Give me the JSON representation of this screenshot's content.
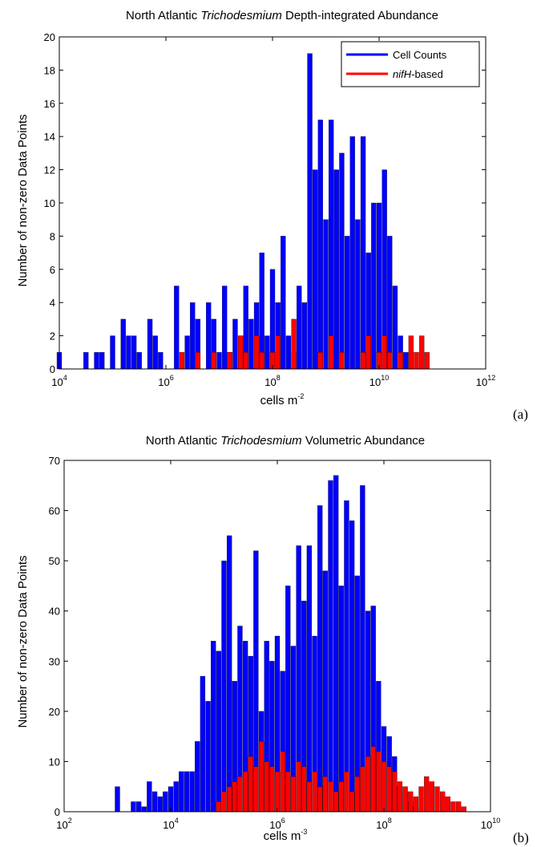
{
  "chart_data": [
    {
      "type": "bar",
      "panel_label": "(a)",
      "title_parts": [
        "North Atlantic ",
        "Trichodesmium",
        " Depth-integrated Abundance"
      ],
      "xlabel_base": "cells m",
      "xlabel_exp": "-2",
      "ylabel": "Number of non-zero Data Points",
      "xscale": "log",
      "xlim_exp": [
        4,
        12
      ],
      "ylim": [
        0,
        20
      ],
      "xticks": [
        {
          "base": "10",
          "exp": "4"
        },
        {
          "base": "10",
          "exp": "6"
        },
        {
          "base": "10",
          "exp": "8"
        },
        {
          "base": "10",
          "exp": "10"
        },
        {
          "base": "10",
          "exp": "12"
        }
      ],
      "yticks": [
        "0",
        "2",
        "4",
        "6",
        "8",
        "10",
        "12",
        "14",
        "16",
        "18",
        "20"
      ],
      "legend": {
        "position": "top-right",
        "entries": [
          {
            "label": "Cell Counts",
            "color": "#0000ff",
            "italic": ""
          },
          {
            "label": "-based",
            "color": "#ff0000",
            "italic": "nifH"
          }
        ]
      },
      "bin_width_log10": 0.1,
      "series": [
        {
          "color": "#0000ff",
          "log10_x": [
            4.0,
            4.5,
            4.7,
            4.8,
            5.0,
            5.2,
            5.3,
            5.4,
            5.5,
            5.7,
            5.8,
            5.9,
            6.2,
            6.4,
            6.5,
            6.6,
            6.8,
            6.9,
            7.0,
            7.1,
            7.2,
            7.3,
            7.4,
            7.5,
            7.6,
            7.7,
            7.8,
            7.9,
            8.0,
            8.1,
            8.2,
            8.3,
            8.4,
            8.5,
            8.6,
            8.7,
            8.8,
            8.9,
            9.0,
            9.1,
            9.2,
            9.3,
            9.4,
            9.5,
            9.6,
            9.7,
            9.8,
            9.9,
            10.0,
            10.1,
            10.2,
            10.3,
            10.4,
            10.5,
            10.6
          ],
          "values": [
            1,
            1,
            1,
            1,
            2,
            3,
            2,
            2,
            1,
            3,
            2,
            1,
            5,
            2,
            4,
            3,
            4,
            3,
            1,
            5,
            1,
            3,
            2,
            5,
            3,
            4,
            7,
            2,
            6,
            4,
            8,
            2,
            1,
            5,
            4,
            19,
            12,
            15,
            9,
            15,
            12,
            13,
            8,
            14,
            9,
            14,
            7,
            10,
            10,
            12,
            8,
            5,
            2,
            1,
            1
          ]
        },
        {
          "color": "#ff0000",
          "log10_x": [
            6.3,
            6.6,
            6.9,
            7.2,
            7.4,
            7.5,
            7.7,
            7.8,
            8.0,
            8.1,
            8.4,
            8.9,
            9.1,
            9.3,
            9.7,
            9.8,
            10.0,
            10.1,
            10.2,
            10.4,
            10.6,
            10.7,
            10.8,
            10.9
          ],
          "values": [
            1,
            1,
            1,
            1,
            2,
            1,
            2,
            1,
            1,
            2,
            3,
            1,
            2,
            1,
            1,
            2,
            1,
            2,
            1,
            1,
            2,
            1,
            2,
            1
          ]
        }
      ]
    },
    {
      "type": "bar",
      "panel_label": "(b)",
      "title_parts": [
        "North Atlantic ",
        "Trichodesmium",
        " Volumetric Abundance"
      ],
      "xlabel_base": "cells m",
      "xlabel_exp": "-3",
      "ylabel": "Number of non-zero Data Points",
      "xscale": "log",
      "xlim_exp": [
        2,
        10
      ],
      "ylim": [
        0,
        70
      ],
      "xticks": [
        {
          "base": "10",
          "exp": "2"
        },
        {
          "base": "10",
          "exp": "4"
        },
        {
          "base": "10",
          "exp": "6"
        },
        {
          "base": "10",
          "exp": "8"
        },
        {
          "base": "10",
          "exp": "10"
        }
      ],
      "yticks": [
        "0",
        "10",
        "20",
        "30",
        "40",
        "50",
        "60",
        "70"
      ],
      "legend": null,
      "bin_width_log10": 0.1,
      "series": [
        {
          "color": "#0000ff",
          "log10_x": [
            3.0,
            3.3,
            3.4,
            3.5,
            3.6,
            3.7,
            3.8,
            3.9,
            4.0,
            4.1,
            4.2,
            4.3,
            4.4,
            4.5,
            4.6,
            4.7,
            4.8,
            4.9,
            5.0,
            5.1,
            5.2,
            5.3,
            5.4,
            5.5,
            5.6,
            5.7,
            5.8,
            5.9,
            6.0,
            6.1,
            6.2,
            6.3,
            6.4,
            6.5,
            6.6,
            6.7,
            6.8,
            6.9,
            7.0,
            7.1,
            7.2,
            7.3,
            7.4,
            7.5,
            7.6,
            7.7,
            7.8,
            7.9,
            8.0,
            8.1,
            8.2,
            8.3,
            8.4,
            8.5,
            8.6
          ],
          "values": [
            5,
            2,
            2,
            1,
            6,
            4,
            3,
            4,
            5,
            6,
            8,
            8,
            8,
            14,
            27,
            22,
            34,
            32,
            50,
            55,
            26,
            37,
            34,
            31,
            52,
            20,
            34,
            30,
            35,
            28,
            45,
            33,
            53,
            42,
            53,
            35,
            61,
            48,
            66,
            67,
            45,
            62,
            58,
            47,
            65,
            40,
            41,
            26,
            17,
            15,
            11,
            5,
            4,
            2,
            1
          ]
        },
        {
          "color": "#ff0000",
          "log10_x": [
            4.9,
            5.0,
            5.1,
            5.2,
            5.3,
            5.4,
            5.5,
            5.6,
            5.7,
            5.8,
            5.9,
            6.0,
            6.1,
            6.2,
            6.3,
            6.4,
            6.5,
            6.6,
            6.7,
            6.8,
            6.9,
            7.0,
            7.1,
            7.2,
            7.3,
            7.4,
            7.5,
            7.6,
            7.7,
            7.8,
            7.9,
            8.0,
            8.1,
            8.2,
            8.3,
            8.4,
            8.5,
            8.6,
            8.7,
            8.8,
            8.9,
            9.0,
            9.1,
            9.2,
            9.3,
            9.4,
            9.5
          ],
          "values": [
            2,
            4,
            5,
            6,
            7,
            8,
            11,
            9,
            14,
            10,
            9,
            8,
            12,
            8,
            7,
            10,
            9,
            6,
            8,
            5,
            7,
            6,
            4,
            6,
            8,
            4,
            7,
            9,
            11,
            13,
            12,
            10,
            9,
            8,
            6,
            5,
            4,
            3,
            5,
            7,
            6,
            5,
            4,
            3,
            2,
            2,
            1
          ]
        }
      ]
    }
  ]
}
